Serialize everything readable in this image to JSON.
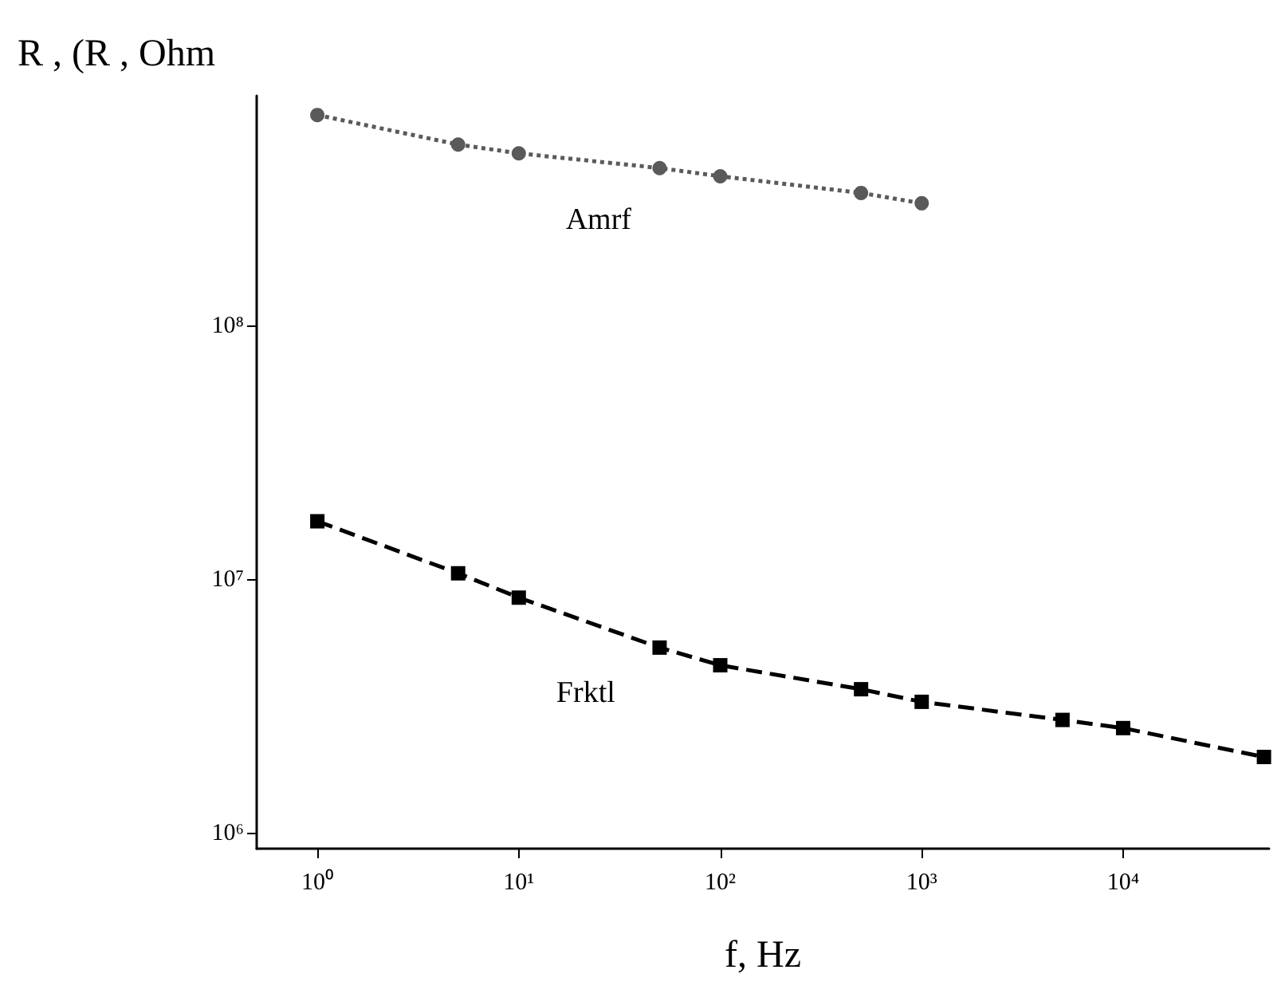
{
  "chart_data": {
    "type": "line",
    "xlabel": "f, Hz",
    "ylabel": "R , (R , Ohm",
    "log": "xy",
    "grid": false,
    "legend": false,
    "xlim": [
      0.5,
      53000
    ],
    "ylim": [
      870000,
      810000000
    ],
    "xticks": [
      {
        "value": 1,
        "label": "10⁰"
      },
      {
        "value": 10,
        "label": "10¹"
      },
      {
        "value": 100,
        "label": "10²"
      },
      {
        "value": 1000,
        "label": "10³"
      },
      {
        "value": 10000,
        "label": "10⁴"
      }
    ],
    "yticks": [
      {
        "value": 1000000,
        "label": "10⁶"
      },
      {
        "value": 10000000,
        "label": "10⁷"
      },
      {
        "value": 100000000,
        "label": "10⁸"
      }
    ],
    "series": [
      {
        "name": "Amrf",
        "color": "#5a5a5a",
        "marker": "circle",
        "line_style": "dotted",
        "x": [
          1,
          5,
          10,
          50,
          100,
          500,
          1000
        ],
        "values": [
          680000000,
          520000000,
          480000000,
          420000000,
          390000000,
          335000000,
          305000000
        ]
      },
      {
        "name": "Frktl",
        "color": "#000000",
        "marker": "square",
        "line_style": "dashed",
        "x": [
          1,
          5,
          10,
          50,
          100,
          500,
          1000,
          5000,
          10000,
          50000
        ],
        "values": [
          17000000,
          10600000,
          8500000,
          5400000,
          4600000,
          3700000,
          3300000,
          2800000,
          2600000,
          2000000
        ]
      }
    ]
  }
}
